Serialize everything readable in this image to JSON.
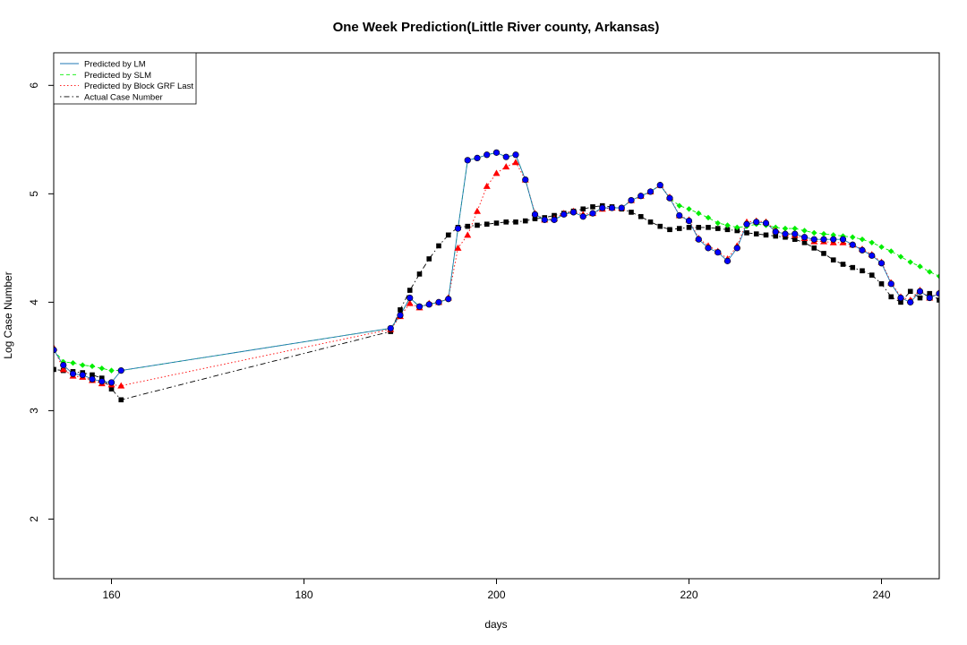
{
  "chart_data": {
    "type": "line",
    "title": "One Week Prediction(Little River county, Arkansas)",
    "xlabel": "days",
    "ylabel": "Log Case Number",
    "xlim": [
      154,
      246
    ],
    "ylim": [
      1.45,
      6.3
    ],
    "xticks": [
      160,
      180,
      200,
      220,
      240
    ],
    "yticks": [
      2,
      3,
      4,
      5,
      6
    ],
    "grid": false,
    "legend_position": "top-left",
    "x": [
      154,
      155,
      156,
      157,
      158,
      159,
      160,
      161,
      189,
      190,
      191,
      192,
      193,
      194,
      195,
      196,
      197,
      198,
      199,
      200,
      201,
      202,
      203,
      204,
      205,
      206,
      207,
      208,
      209,
      210,
      211,
      212,
      213,
      214,
      215,
      216,
      217,
      218,
      219,
      220,
      221,
      222,
      223,
      224,
      225,
      226,
      227,
      228,
      229,
      230,
      231,
      232,
      233,
      234,
      235,
      236,
      237,
      238,
      239,
      240,
      241,
      242,
      243,
      244,
      245,
      246
    ],
    "series": [
      {
        "name": "Predicted by LM",
        "color": "#1f77b4",
        "line_style": "solid",
        "marker": "circle",
        "marker_fill": "#0000ff",
        "values": [
          3.56,
          3.42,
          3.34,
          3.33,
          3.29,
          3.27,
          3.26,
          3.37,
          3.76,
          3.88,
          4.04,
          3.96,
          3.98,
          4.0,
          4.03,
          4.68,
          5.31,
          5.33,
          5.36,
          5.38,
          5.34,
          5.36,
          5.13,
          4.81,
          4.76,
          4.76,
          4.81,
          4.83,
          4.79,
          4.82,
          4.87,
          4.87,
          4.87,
          4.94,
          4.98,
          5.02,
          5.08,
          4.96,
          4.8,
          4.75,
          4.58,
          4.5,
          4.46,
          4.38,
          4.5,
          4.72,
          4.74,
          4.73,
          4.65,
          4.63,
          4.63,
          4.6,
          4.58,
          4.58,
          4.58,
          4.58,
          4.53,
          4.48,
          4.43,
          4.36,
          4.17,
          4.04,
          4.0,
          4.1,
          4.04,
          4.08
        ]
      },
      {
        "name": "Predicted by SLM",
        "color": "#00ee00",
        "line_style": "dashed",
        "marker": "diamond",
        "marker_fill": "#00ee00",
        "values": [
          3.56,
          3.45,
          3.44,
          3.42,
          3.41,
          3.39,
          3.37,
          3.37,
          3.76,
          3.88,
          4.04,
          3.96,
          3.98,
          4.0,
          4.03,
          4.68,
          5.31,
          5.33,
          5.36,
          5.38,
          5.34,
          5.36,
          5.13,
          4.81,
          4.76,
          4.76,
          4.81,
          4.83,
          4.79,
          4.82,
          4.87,
          4.87,
          4.87,
          4.94,
          4.98,
          5.02,
          5.08,
          4.96,
          4.89,
          4.86,
          4.82,
          4.78,
          4.73,
          4.71,
          4.69,
          4.7,
          4.72,
          4.71,
          4.69,
          4.68,
          4.68,
          4.66,
          4.64,
          4.63,
          4.62,
          4.61,
          4.6,
          4.58,
          4.55,
          4.51,
          4.47,
          4.42,
          4.37,
          4.33,
          4.28,
          4.24
        ]
      },
      {
        "name": "Predicted by Block GRF Last",
        "color": "#ff0000",
        "line_style": "dotted",
        "marker": "triangle",
        "marker_fill": "#ff0000",
        "values": [
          3.58,
          3.38,
          3.32,
          3.31,
          3.28,
          3.25,
          3.24,
          3.23,
          3.75,
          3.87,
          3.99,
          3.95,
          3.99,
          4.0,
          4.04,
          4.5,
          4.62,
          4.84,
          5.07,
          5.19,
          5.25,
          5.29,
          5.13,
          4.82,
          4.76,
          4.77,
          4.82,
          4.84,
          4.81,
          4.82,
          4.86,
          4.87,
          4.87,
          4.94,
          4.98,
          5.02,
          5.08,
          4.97,
          4.8,
          4.76,
          4.59,
          4.52,
          4.47,
          4.4,
          4.52,
          4.74,
          4.75,
          4.74,
          4.66,
          4.63,
          4.62,
          4.59,
          4.56,
          4.56,
          4.55,
          4.55,
          4.53,
          4.49,
          4.44,
          4.37,
          4.18,
          4.05,
          4.02,
          4.11,
          4.04,
          4.09
        ]
      },
      {
        "name": "Actual Case Number",
        "color": "#000000",
        "line_style": "dotdash",
        "marker": "square",
        "marker_fill": "#000000",
        "values": [
          3.38,
          3.37,
          3.36,
          3.35,
          3.33,
          3.3,
          3.2,
          3.1,
          3.73,
          3.93,
          4.11,
          4.26,
          4.4,
          4.52,
          4.62,
          4.69,
          4.7,
          4.71,
          4.72,
          4.73,
          4.74,
          4.74,
          4.75,
          4.77,
          4.78,
          4.8,
          4.82,
          4.84,
          4.86,
          4.88,
          4.89,
          4.88,
          4.86,
          4.83,
          4.79,
          4.74,
          4.7,
          4.67,
          4.68,
          4.69,
          4.69,
          4.69,
          4.68,
          4.67,
          4.66,
          4.64,
          4.63,
          4.62,
          4.61,
          4.6,
          4.58,
          4.55,
          4.5,
          4.45,
          4.39,
          4.35,
          4.32,
          4.29,
          4.25,
          4.17,
          4.05,
          4.0,
          4.1,
          4.04,
          4.08,
          4.02
        ]
      }
    ]
  }
}
